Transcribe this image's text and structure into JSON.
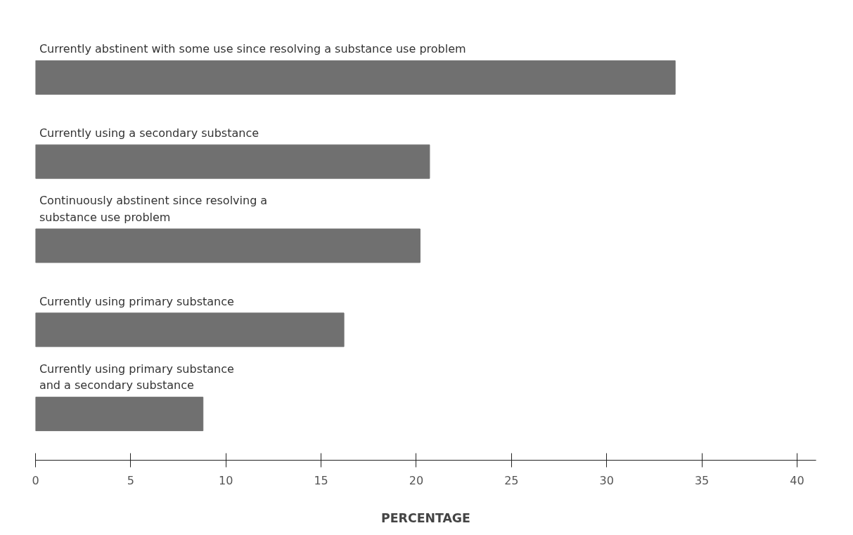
{
  "chart_data": {
    "type": "bar",
    "orientation": "horizontal",
    "xlabel": "PERCENTAGE",
    "categories": [
      "Currently abstinent with some use since resolving a substance use problem",
      "Currently using a secondary substance",
      "Continuously abstinent since resolving a\nsubstance use problem",
      "Currently using primary substance",
      "Currently using primary substance\nand a secondary substance"
    ],
    "values": [
      33.6,
      20.7,
      20.2,
      16.2,
      8.8
    ],
    "color": "#707070",
    "xlim": [
      0,
      41
    ],
    "xticks": [
      0,
      5,
      10,
      15,
      20,
      25,
      30,
      35,
      40
    ],
    "grid": false
  }
}
